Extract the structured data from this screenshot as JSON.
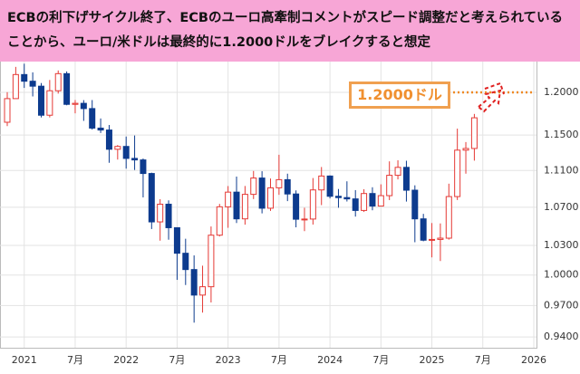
{
  "chart_data": {
    "type": "candlestick",
    "title": "ECBの利下げサイクル終了、ECBのユーロ高牽制コメントがスピード調整だと考えられていることから、ユーロ/米ドルは最終的に1.2000ドルをブレイクすると想定",
    "annotation": "1.2000ドル",
    "categories": [
      null,
      null,
      "2021",
      null,
      null,
      null,
      null,
      null,
      "7月",
      null,
      null,
      null,
      null,
      null,
      "2022",
      null,
      null,
      null,
      null,
      null,
      "7月",
      null,
      null,
      null,
      null,
      null,
      "2023",
      null,
      null,
      null,
      null,
      null,
      "7月",
      null,
      null,
      null,
      null,
      null,
      "2024",
      null,
      null,
      null,
      null,
      null,
      "7月",
      null,
      null,
      null,
      null,
      null,
      "2025",
      null,
      null,
      null,
      null,
      null,
      "7月",
      null,
      null,
      null,
      null,
      null,
      "2026"
    ],
    "open": [
      1.1648,
      1.1926,
      1.2216,
      1.2135,
      1.2075,
      1.173,
      1.202,
      1.2227,
      1.1858,
      1.187,
      1.1808,
      1.158,
      1.1558,
      1.1338,
      1.137,
      1.1235,
      1.1218,
      1.1067,
      1.0545,
      1.0733,
      1.0484,
      1.022,
      1.0055,
      0.9802,
      0.9884,
      1.0406,
      1.0705,
      1.0863,
      1.0577,
      1.0839,
      1.1017,
      1.069,
      1.091,
      1.0999,
      1.0843,
      1.0573,
      1.0575,
      1.0887,
      1.1039,
      1.0818,
      1.0804,
      1.079,
      1.0666,
      1.0848,
      1.0713,
      1.0825,
      1.1047,
      1.1135,
      1.0884,
      1.0577,
      1.0354,
      1.0362,
      1.0375,
      1.0815,
      1.1328,
      1.1347,
      null,
      null,
      null,
      null,
      null,
      null,
      null
    ],
    "high": [
      1.2004,
      1.231,
      1.2349,
      1.2243,
      1.2113,
      1.215,
      1.2266,
      1.2254,
      1.1909,
      1.1908,
      1.1909,
      1.1692,
      1.1616,
      1.1386,
      1.1483,
      1.1495,
      1.1234,
      1.1076,
      1.0787,
      1.0774,
      1.0486,
      1.0369,
      1.0198,
      1.0094,
      1.0497,
      1.0736,
      1.0929,
      1.1033,
      1.093,
      1.1095,
      1.1092,
      1.1012,
      1.1276,
      1.1065,
      1.0882,
      1.0695,
      1.1017,
      1.1139,
      1.1046,
      1.0897,
      1.0981,
      1.0885,
      1.0895,
      1.0916,
      1.0948,
      1.1202,
      1.1214,
      1.1209,
      1.0937,
      1.063,
      1.0533,
      1.0529,
      1.0955,
      1.1574,
      1.142,
      1.1745,
      null,
      null,
      null,
      null,
      null,
      null,
      null
    ],
    "low": [
      1.1603,
      1.1925,
      1.2054,
      1.1952,
      1.1704,
      1.1704,
      1.1986,
      1.1847,
      1.1752,
      1.1664,
      1.1563,
      1.1524,
      1.1186,
      1.1222,
      1.1121,
      1.1106,
      1.0806,
      1.047,
      1.0349,
      1.0359,
      0.9952,
      0.9901,
      0.9536,
      0.9632,
      0.973,
      1.0393,
      1.0483,
      1.0533,
      1.0516,
      1.0788,
      1.0635,
      1.0662,
      1.0834,
      1.0766,
      1.0488,
      1.0448,
      1.0517,
      1.0723,
      1.0795,
      1.0695,
      1.0762,
      1.0601,
      1.065,
      1.0668,
      1.0709,
      1.0777,
      1.1002,
      1.0761,
      1.0333,
      1.0343,
      1.0178,
      1.0141,
      1.036,
      1.0778,
      1.1065,
      1.121,
      null,
      null,
      null,
      null,
      null,
      null,
      null
    ],
    "close": [
      1.1926,
      1.2216,
      1.2135,
      1.2075,
      1.173,
      1.202,
      1.2227,
      1.1858,
      1.187,
      1.1808,
      1.158,
      1.1558,
      1.1338,
      1.137,
      1.1235,
      1.1218,
      1.1067,
      1.0545,
      1.0733,
      1.0484,
      1.022,
      1.0055,
      0.9802,
      0.9884,
      1.0406,
      1.0705,
      1.0863,
      1.0577,
      1.0839,
      1.1017,
      1.069,
      1.091,
      1.0999,
      1.0843,
      1.0573,
      1.0575,
      1.0887,
      1.1039,
      1.0818,
      1.0804,
      1.079,
      1.0666,
      1.0848,
      1.0713,
      1.0825,
      1.1047,
      1.1135,
      1.0884,
      1.0577,
      1.0354,
      1.0362,
      1.0375,
      1.0815,
      1.1328,
      1.1347,
      1.17,
      null,
      null,
      null,
      null,
      null,
      null,
      null
    ],
    "ylim": [
      0.93,
      1.275
    ],
    "yticks": [
      {
        "value": 0.94,
        "label": "0.9400"
      },
      {
        "value": 0.97,
        "label": "0.9700"
      },
      {
        "value": 1.0,
        "label": "1.0000"
      },
      {
        "value": 1.03,
        "label": "1.0300"
      },
      {
        "value": 1.07,
        "label": "1.0700"
      },
      {
        "value": 1.11,
        "label": "1.1100"
      },
      {
        "value": 1.15,
        "label": "1.1500"
      },
      {
        "value": 1.2,
        "label": "1.2000"
      }
    ],
    "annotation_value": 1.2,
    "log_scale": true,
    "grid": true,
    "up_color": "#e53935",
    "down_color": "#0d3b8e"
  }
}
